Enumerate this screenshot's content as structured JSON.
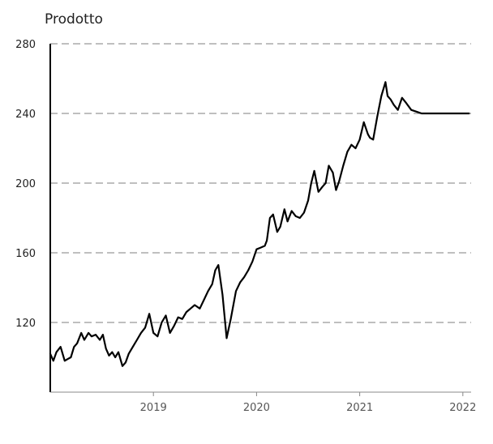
{
  "chart_data": {
    "type": "line",
    "title": "Prodotto",
    "xlabel": "",
    "ylabel": "",
    "ylim": [
      80,
      280
    ],
    "yticks": [
      120,
      160,
      200,
      240,
      280
    ],
    "xlim": [
      2018.0,
      2022.08
    ],
    "xticks": [
      {
        "value": 2019,
        "label": "2019"
      },
      {
        "value": 2020,
        "label": "2020"
      },
      {
        "value": 2021,
        "label": "2021"
      },
      {
        "value": 2022,
        "label": "2022"
      }
    ],
    "grid": "horizontal dashed",
    "series": [
      {
        "color": "#000000",
        "x": [
          2018.0,
          2018.03,
          2018.06,
          2018.1,
          2018.14,
          2018.17,
          2018.2,
          2018.23,
          2018.26,
          2018.3,
          2018.33,
          2018.37,
          2018.4,
          2018.44,
          2018.48,
          2018.51,
          2018.54,
          2018.57,
          2018.6,
          2018.63,
          2018.66,
          2018.7,
          2018.73,
          2018.76,
          2018.8,
          2018.84,
          2018.88,
          2018.92,
          2018.96,
          2019.0,
          2019.04,
          2019.08,
          2019.12,
          2019.16,
          2019.2,
          2019.24,
          2019.28,
          2019.32,
          2019.36,
          2019.4,
          2019.45,
          2019.49,
          2019.53,
          2019.57,
          2019.6,
          2019.63,
          2019.67,
          2019.71,
          2019.75,
          2019.8,
          2019.84,
          2019.88,
          2019.92,
          2019.96,
          2020.0,
          2020.04,
          2020.08,
          2020.1,
          2020.13,
          2020.16,
          2020.2,
          2020.23,
          2020.27,
          2020.3,
          2020.34,
          2020.38,
          2020.42,
          2020.46,
          2020.5,
          2020.53,
          2020.56,
          2020.6,
          2020.64,
          2020.67,
          2020.7,
          2020.74,
          2020.77,
          2020.8,
          2020.84,
          2020.88,
          2020.92,
          2020.96,
          2021.0,
          2021.04,
          2021.08,
          2021.1,
          2021.13,
          2021.17,
          2021.21,
          2021.25,
          2021.27,
          2021.3,
          2021.33,
          2021.37,
          2021.41,
          2021.45,
          2021.5,
          2021.55,
          2021.6,
          2021.64,
          2021.68,
          2021.72,
          2021.76,
          2021.8,
          2021.84,
          2021.88,
          2021.91,
          2021.94,
          2021.97,
          2022.0,
          2022.03,
          2022.06
        ],
        "values": [
          102,
          98,
          103,
          106,
          98,
          99,
          100,
          106,
          108,
          114,
          110,
          114,
          112,
          113,
          110,
          113,
          105,
          101,
          103,
          100,
          103,
          95,
          97,
          102,
          106,
          110,
          114,
          117,
          125,
          114,
          112,
          120,
          124,
          114,
          118,
          123,
          122,
          126,
          128,
          130,
          128,
          133,
          138,
          142,
          150,
          153,
          136,
          111,
          122,
          138,
          143,
          146,
          150,
          155,
          162,
          163,
          164,
          167,
          180,
          182,
          172,
          175,
          185,
          178,
          184,
          181,
          180,
          183,
          190,
          200,
          207,
          195,
          198,
          200,
          210,
          206,
          196,
          201,
          210,
          218,
          222,
          220,
          225,
          235,
          228,
          226,
          225,
          238,
          250,
          258,
          250,
          248,
          245,
          242,
          249,
          246,
          242,
          241,
          240,
          240,
          240,
          240,
          240,
          240,
          240,
          240,
          240,
          240,
          240,
          240,
          240,
          240
        ]
      }
    ]
  }
}
